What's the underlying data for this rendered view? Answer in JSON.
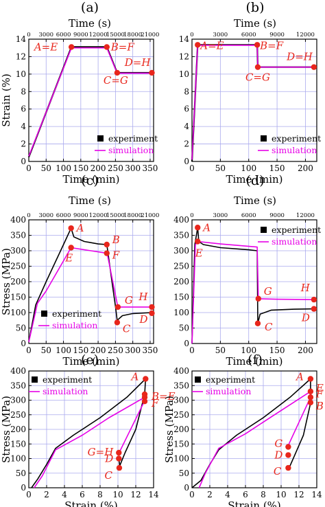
{
  "colors": {
    "experiment": "#000000",
    "simulation": "#e600e6",
    "point": "#e8261c",
    "annotation": "#e8261c",
    "grid": "#aaaaee"
  },
  "legend": {
    "experiment": "experiment",
    "simulation": "simulation"
  },
  "chart_data": [
    {
      "panel": "(a)",
      "type": "line",
      "xlabel": "Time (min)",
      "ylabel": "Strain (%)",
      "top_label": "Time (s)",
      "xlim": [
        0,
        360
      ],
      "ylim": [
        0,
        14
      ],
      "xticks": [
        "0",
        "50",
        "100",
        "150",
        "200",
        "250",
        "300",
        "350"
      ],
      "yticks": [
        "0",
        "2",
        "4",
        "6",
        "8",
        "10",
        "12",
        "14"
      ],
      "top_ticks": [
        "0",
        "3000",
        "6000",
        "9000",
        "12000",
        "15000",
        "18000",
        "21000"
      ],
      "legend_position": "bottom-right",
      "series": [
        {
          "name": "experiment",
          "x": [
            0,
            123,
            225,
            255,
            355
          ],
          "y": [
            0.5,
            13.1,
            13.1,
            10.15,
            10.15
          ]
        },
        {
          "name": "simulation",
          "x": [
            0,
            123,
            225,
            255,
            355
          ],
          "y": [
            0.6,
            13.0,
            13.0,
            10.1,
            10.1
          ]
        }
      ],
      "points": [
        {
          "x": 123,
          "y": 13.1
        },
        {
          "x": 225,
          "y": 13.1
        },
        {
          "x": 255,
          "y": 10.15
        },
        {
          "x": 355,
          "y": 10.15
        }
      ],
      "annotations": [
        {
          "text": "A=E",
          "x": 123,
          "y": 13.1
        },
        {
          "text": "B=F",
          "x": 225,
          "y": 13.1
        },
        {
          "text": "C=G",
          "x": 255,
          "y": 10.15
        },
        {
          "text": "D=H",
          "x": 355,
          "y": 10.15
        }
      ]
    },
    {
      "panel": "(b)",
      "type": "line",
      "xlabel": "Time (min)",
      "ylabel": "",
      "top_label": "Time (s)",
      "xlim": [
        0,
        220
      ],
      "ylim": [
        0,
        14
      ],
      "xticks": [
        "0",
        "50",
        "100",
        "150",
        "200"
      ],
      "yticks": [
        "0",
        "2",
        "4",
        "6",
        "8",
        "10",
        "12",
        "14"
      ],
      "top_ticks": [
        "0",
        "3000",
        "6000",
        "9000",
        "12000"
      ],
      "legend_position": "bottom-right",
      "series": [
        {
          "name": "experiment",
          "x": [
            0,
            10,
            115,
            116,
            215
          ],
          "y": [
            0,
            13.35,
            13.35,
            10.8,
            10.8
          ]
        },
        {
          "name": "simulation",
          "x": [
            0,
            10,
            115,
            116,
            215
          ],
          "y": [
            0.2,
            13.3,
            13.3,
            10.8,
            10.8
          ]
        }
      ],
      "points": [
        {
          "x": 10,
          "y": 13.35
        },
        {
          "x": 115,
          "y": 13.35
        },
        {
          "x": 116,
          "y": 10.8
        },
        {
          "x": 215,
          "y": 10.8
        }
      ],
      "annotations": [
        {
          "text": "A=E",
          "x": 10,
          "y": 13.35
        },
        {
          "text": "B=F",
          "x": 115,
          "y": 13.35
        },
        {
          "text": "C=G",
          "x": 116,
          "y": 10.8
        },
        {
          "text": "D=H",
          "x": 215,
          "y": 10.8
        }
      ]
    },
    {
      "panel": "(c)",
      "type": "line",
      "xlabel": "Time (min)",
      "ylabel": "Stress (MPa)",
      "top_label": "Time (s)",
      "xlim": [
        0,
        360
      ],
      "ylim": [
        0,
        400
      ],
      "xticks": [
        "0",
        "50",
        "100",
        "150",
        "200",
        "250",
        "300",
        "350"
      ],
      "yticks": [
        "0",
        "50",
        "100",
        "150",
        "200",
        "250",
        "300",
        "350",
        "400"
      ],
      "top_ticks": [
        "0",
        "3000",
        "6000",
        "9000",
        "12000",
        "15000",
        "18000",
        "21000"
      ],
      "legend_position": "bottom-left",
      "series": [
        {
          "name": "experiment",
          "x": [
            0,
            20,
            50,
            100,
            122,
            130,
            160,
            200,
            225,
            240,
            250,
            255,
            270,
            300,
            355
          ],
          "y": [
            5,
            125,
            200,
            320,
            373,
            345,
            330,
            322,
            320,
            200,
            120,
            75,
            90,
            97,
            100
          ]
        },
        {
          "name": "simulation",
          "x": [
            0,
            25,
            50,
            122,
            225,
            228,
            257,
            300,
            355
          ],
          "y": [
            5,
            130,
            170,
            310,
            292,
            280,
            118,
            118,
            118
          ]
        }
      ],
      "points": [
        {
          "x": 122,
          "y": 373
        },
        {
          "x": 225,
          "y": 320
        },
        {
          "x": 255,
          "y": 68
        },
        {
          "x": 355,
          "y": 98
        },
        {
          "x": 122,
          "y": 310
        },
        {
          "x": 225,
          "y": 292
        },
        {
          "x": 257,
          "y": 118
        },
        {
          "x": 355,
          "y": 118
        }
      ],
      "annotations": [
        {
          "text": "A",
          "x": 122,
          "y": 373
        },
        {
          "text": "B",
          "x": 225,
          "y": 320
        },
        {
          "text": "C",
          "x": 255,
          "y": 68
        },
        {
          "text": "D",
          "x": 355,
          "y": 98
        },
        {
          "text": "E",
          "x": 122,
          "y": 310
        },
        {
          "text": "F",
          "x": 225,
          "y": 292
        },
        {
          "text": "G",
          "x": 257,
          "y": 118
        },
        {
          "text": "H",
          "x": 355,
          "y": 118
        }
      ]
    },
    {
      "panel": "(d)",
      "type": "line",
      "xlabel": "Time (min)",
      "ylabel": "",
      "top_label": "Time (s)",
      "xlim": [
        0,
        220
      ],
      "ylim": [
        0,
        400
      ],
      "xticks": [
        "0",
        "50",
        "100",
        "150",
        "200"
      ],
      "yticks": [
        "0",
        "50",
        "100",
        "150",
        "200",
        "250",
        "300",
        "350",
        "400"
      ],
      "top_ticks": [
        "0",
        "3000",
        "6000",
        "9000",
        "12000"
      ],
      "legend_position": "top-right",
      "series": [
        {
          "name": "experiment",
          "x": [
            0,
            5,
            10,
            12,
            20,
            50,
            100,
            115,
            116,
            120,
            140,
            180,
            215
          ],
          "y": [
            0,
            320,
            375,
            330,
            320,
            310,
            303,
            300,
            65,
            95,
            108,
            111,
            112
          ]
        },
        {
          "name": "simulation",
          "x": [
            0,
            6,
            10,
            50,
            115,
            117,
            150,
            215
          ],
          "y": [
            0,
            320,
            330,
            322,
            312,
            145,
            143,
            142
          ]
        }
      ],
      "points": [
        {
          "x": 10,
          "y": 375
        },
        {
          "x": 10,
          "y": 330
        },
        {
          "x": 117,
          "y": 145
        },
        {
          "x": 116,
          "y": 65
        },
        {
          "x": 215,
          "y": 112
        },
        {
          "x": 215,
          "y": 142
        }
      ],
      "annotations": [
        {
          "text": "A",
          "x": 10,
          "y": 375
        },
        {
          "text": "E",
          "x": 10,
          "y": 330
        },
        {
          "text": "G",
          "x": 117,
          "y": 145
        },
        {
          "text": "C",
          "x": 116,
          "y": 65
        },
        {
          "text": "D",
          "x": 215,
          "y": 112
        },
        {
          "text": "H",
          "x": 215,
          "y": 142
        }
      ]
    },
    {
      "panel": "(e)",
      "type": "line",
      "xlabel": "Strain (%)",
      "ylabel": "Stress (MPa)",
      "xlim": [
        0,
        14
      ],
      "ylim": [
        0,
        400
      ],
      "xticks": [
        "0",
        "2",
        "4",
        "6",
        "8",
        "10",
        "12",
        "14"
      ],
      "yticks": [
        "0",
        "50",
        "100",
        "150",
        "200",
        "250",
        "300",
        "350",
        "400"
      ],
      "legend_position": "top-left",
      "series": [
        {
          "name": "experiment",
          "x": [
            0.3,
            1,
            2,
            3,
            5,
            8,
            11,
            13.1,
            13.0,
            12.0,
            10.8,
            10.2,
            10.1
          ],
          "y": [
            0,
            30,
            80,
            135,
            180,
            240,
            310,
            373,
            320,
            200,
            120,
            75,
            100
          ]
        },
        {
          "name": "simulation",
          "x": [
            0.6,
            1.5,
            3,
            6,
            9,
            13.0,
            12.9,
            10.1,
            10.1
          ],
          "y": [
            0,
            40,
            130,
            180,
            240,
            310,
            292,
            118,
            118
          ]
        }
      ],
      "points": [
        {
          "x": 13.1,
          "y": 373
        },
        {
          "x": 13.0,
          "y": 320
        },
        {
          "x": 13.0,
          "y": 310
        },
        {
          "x": 13.0,
          "y": 296
        },
        {
          "x": 10.1,
          "y": 120
        },
        {
          "x": 10.1,
          "y": 100
        },
        {
          "x": 10.15,
          "y": 68
        }
      ],
      "annotations": [
        {
          "text": "A",
          "x": 13.1,
          "y": 373
        },
        {
          "text": "B=E",
          "x": 13.0,
          "y": 320
        },
        {
          "text": "F",
          "x": 13.0,
          "y": 296
        },
        {
          "text": "G=H",
          "x": 10.1,
          "y": 120
        },
        {
          "text": "D",
          "x": 10.1,
          "y": 100
        },
        {
          "text": "C",
          "x": 10.15,
          "y": 68
        }
      ]
    },
    {
      "panel": "(f)",
      "type": "line",
      "xlabel": "Strain (%)",
      "ylabel": "Stress (MPa)",
      "xlim": [
        0,
        14
      ],
      "ylim": [
        0,
        400
      ],
      "xticks": [
        "0",
        "2",
        "4",
        "6",
        "8",
        "10",
        "12",
        "14"
      ],
      "yticks": [
        "0",
        "50",
        "100",
        "150",
        "200",
        "250",
        "300",
        "350",
        "400"
      ],
      "legend_position": "top-left",
      "series": [
        {
          "name": "experiment",
          "x": [
            0,
            1,
            2,
            3,
            5,
            8,
            11,
            13.3,
            13.3,
            12.5,
            11.5,
            11.0,
            10.8
          ],
          "y": [
            0,
            25,
            80,
            130,
            180,
            240,
            310,
            373,
            290,
            180,
            110,
            75,
            70
          ]
        },
        {
          "name": "simulation",
          "x": [
            0.8,
            1.5,
            3,
            6,
            9,
            13.3,
            13.3,
            10.8,
            10.8
          ],
          "y": [
            0,
            50,
            135,
            185,
            245,
            330,
            310,
            145,
            145
          ]
        }
      ],
      "points": [
        {
          "x": 13.3,
          "y": 373
        },
        {
          "x": 13.3,
          "y": 330
        },
        {
          "x": 13.3,
          "y": 310
        },
        {
          "x": 13.3,
          "y": 292
        },
        {
          "x": 10.8,
          "y": 140
        },
        {
          "x": 10.8,
          "y": 112
        },
        {
          "x": 10.8,
          "y": 68
        }
      ],
      "annotations": [
        {
          "text": "A",
          "x": 13.3,
          "y": 373
        },
        {
          "text": "E",
          "x": 13.3,
          "y": 330
        },
        {
          "text": "F",
          "x": 13.3,
          "y": 310
        },
        {
          "text": "B",
          "x": 13.3,
          "y": 292
        },
        {
          "text": "G",
          "x": 10.8,
          "y": 140
        },
        {
          "text": "D",
          "x": 10.8,
          "y": 112
        },
        {
          "text": "C",
          "x": 10.8,
          "y": 68
        }
      ]
    }
  ]
}
